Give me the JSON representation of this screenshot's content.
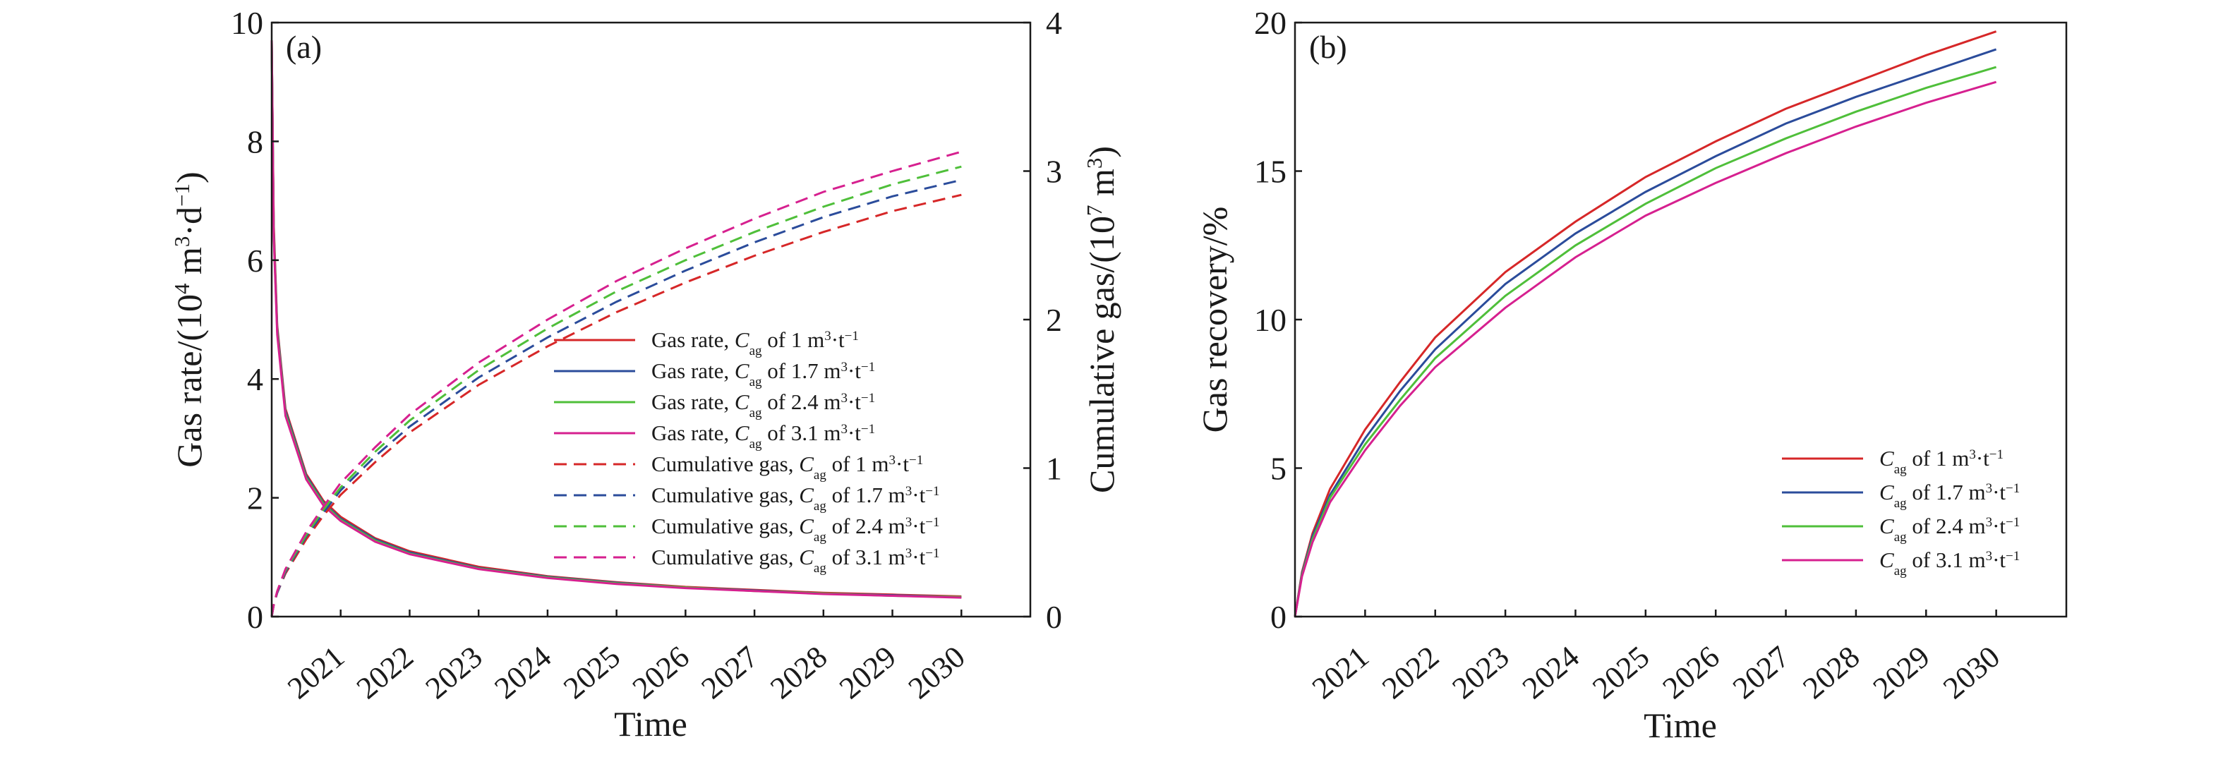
{
  "chart_data": [
    {
      "panel_label": "(a)",
      "type": "line",
      "xlabel": "Time",
      "ylabel_left": [
        "Gas rate/(10",
        "4",
        " m",
        "3",
        "·d",
        "−1",
        ")"
      ],
      "ylabel_right": [
        "Cumulative gas/(10",
        "7",
        " m",
        "3",
        ")"
      ],
      "x_ticks": [
        "2021",
        "2022",
        "2023",
        "2024",
        "2025",
        "2026",
        "2027",
        "2028",
        "2029",
        "2030"
      ],
      "xlim": [
        2020.0,
        2031.0
      ],
      "ylim_left": [
        0,
        10
      ],
      "y_ticks_left": [
        "0",
        "2",
        "4",
        "6",
        "8",
        "10"
      ],
      "ylim_right": [
        0,
        4
      ],
      "y_ticks_right": [
        "0",
        "1",
        "2",
        "3",
        "4"
      ],
      "x_values": [
        2020.0,
        2020.03,
        2020.08,
        2020.2,
        2020.5,
        2020.75,
        2021.0,
        2021.5,
        2022.0,
        2023.0,
        2024.0,
        2025.0,
        2026.0,
        2027.0,
        2028.0,
        2029.0,
        2030.0
      ],
      "series": [
        {
          "name_parts": [
            "Gas rate, ",
            "C",
            "ag",
            " of 1 m",
            "3",
            "·t",
            "−1"
          ],
          "axis": "left",
          "dash": "solid",
          "color": "#d62728",
          "values": [
            9.7,
            6.6,
            4.9,
            3.5,
            2.4,
            1.95,
            1.68,
            1.32,
            1.1,
            0.84,
            0.68,
            0.58,
            0.5,
            0.45,
            0.4,
            0.37,
            0.34
          ]
        },
        {
          "name_parts": [
            "Gas rate, ",
            "C",
            "ag",
            " of 1.7 m",
            "3",
            "·t",
            "−1"
          ],
          "axis": "left",
          "dash": "solid",
          "color": "#2b4c9b",
          "values": [
            9.7,
            6.5,
            4.85,
            3.46,
            2.37,
            1.92,
            1.65,
            1.3,
            1.08,
            0.82,
            0.67,
            0.57,
            0.49,
            0.44,
            0.39,
            0.36,
            0.33
          ]
        },
        {
          "name_parts": [
            "Gas rate, ",
            "C",
            "ag",
            " of 2.4 m",
            "3",
            "·t",
            "−1"
          ],
          "axis": "left",
          "dash": "solid",
          "color": "#4fbf3a",
          "values": [
            9.7,
            6.45,
            4.8,
            3.42,
            2.34,
            1.9,
            1.63,
            1.28,
            1.06,
            0.81,
            0.66,
            0.56,
            0.49,
            0.43,
            0.39,
            0.35,
            0.33
          ]
        },
        {
          "name_parts": [
            "Gas rate, ",
            "C",
            "ag",
            " of 3.1 m",
            "3",
            "·t",
            "−1"
          ],
          "axis": "left",
          "dash": "solid",
          "color": "#d6208f",
          "values": [
            9.7,
            6.4,
            4.75,
            3.38,
            2.31,
            1.87,
            1.61,
            1.26,
            1.05,
            0.8,
            0.65,
            0.55,
            0.48,
            0.43,
            0.38,
            0.35,
            0.32
          ]
        },
        {
          "name_parts": [
            "Cumulative gas, ",
            "C",
            "ag",
            " of 1 m",
            "3",
            "·t",
            "−1"
          ],
          "axis": "right",
          "dash": "dashed",
          "color": "#d62728",
          "values": [
            0,
            0.08,
            0.16,
            0.29,
            0.52,
            0.68,
            0.82,
            1.04,
            1.24,
            1.56,
            1.82,
            2.05,
            2.25,
            2.43,
            2.59,
            2.73,
            2.84
          ]
        },
        {
          "name_parts": [
            "Cumulative gas, ",
            "C",
            "ag",
            " of 1.7 m",
            "3",
            "·t",
            "−1"
          ],
          "axis": "right",
          "dash": "dashed",
          "color": "#2b4c9b",
          "values": [
            0,
            0.08,
            0.16,
            0.3,
            0.54,
            0.7,
            0.85,
            1.08,
            1.28,
            1.61,
            1.88,
            2.12,
            2.33,
            2.52,
            2.69,
            2.83,
            2.94
          ]
        },
        {
          "name_parts": [
            "Cumulative gas, ",
            "C",
            "ag",
            " of 2.4 m",
            "3",
            "·t",
            "−1"
          ],
          "axis": "right",
          "dash": "dashed",
          "color": "#4fbf3a",
          "values": [
            0,
            0.08,
            0.17,
            0.31,
            0.55,
            0.72,
            0.87,
            1.11,
            1.32,
            1.66,
            1.94,
            2.19,
            2.4,
            2.59,
            2.76,
            2.91,
            3.03
          ]
        },
        {
          "name_parts": [
            "Cumulative gas, ",
            "C",
            "ag",
            " of 3.1 m",
            "3",
            "·t",
            "−1"
          ],
          "axis": "right",
          "dash": "dashed",
          "color": "#d6208f",
          "values": [
            0,
            0.08,
            0.17,
            0.32,
            0.57,
            0.74,
            0.9,
            1.14,
            1.36,
            1.71,
            2.0,
            2.26,
            2.48,
            2.68,
            2.86,
            3.0,
            3.13
          ]
        }
      ],
      "legend_position": "center-right"
    },
    {
      "panel_label": "(b)",
      "type": "line",
      "xlabel": "Time",
      "ylabel": "Gas recovery/%",
      "x_ticks": [
        "2021",
        "2022",
        "2023",
        "2024",
        "2025",
        "2026",
        "2027",
        "2028",
        "2029",
        "2030"
      ],
      "xlim": [
        2020.0,
        2031.0
      ],
      "ylim": [
        0,
        20
      ],
      "y_ticks": [
        "0",
        "5",
        "10",
        "15",
        "20"
      ],
      "x_values": [
        2020.0,
        2020.1,
        2020.25,
        2020.5,
        2021.0,
        2021.5,
        2022.0,
        2023.0,
        2024.0,
        2025.0,
        2026.0,
        2027.0,
        2028.0,
        2029.0,
        2030.0
      ],
      "series": [
        {
          "name_parts": [
            "",
            "C",
            "ag",
            " of 1 m",
            "3",
            "·t",
            "−1"
          ],
          "color": "#d62728",
          "values": [
            0,
            1.5,
            2.8,
            4.3,
            6.3,
            7.9,
            9.4,
            11.6,
            13.3,
            14.8,
            16.0,
            17.1,
            18.0,
            18.9,
            19.7
          ]
        },
        {
          "name_parts": [
            "",
            "C",
            "ag",
            " of 1.7 m",
            "3",
            "·t",
            "−1"
          ],
          "color": "#2b4c9b",
          "values": [
            0,
            1.45,
            2.7,
            4.1,
            6.0,
            7.6,
            9.0,
            11.2,
            12.9,
            14.3,
            15.5,
            16.6,
            17.5,
            18.3,
            19.1
          ]
        },
        {
          "name_parts": [
            "",
            "C",
            "ag",
            " of 2.4 m",
            "3",
            "·t",
            "−1"
          ],
          "color": "#4fbf3a",
          "values": [
            0,
            1.4,
            2.6,
            4.0,
            5.8,
            7.3,
            8.7,
            10.8,
            12.5,
            13.9,
            15.1,
            16.1,
            17.0,
            17.8,
            18.5
          ]
        },
        {
          "name_parts": [
            "",
            "C",
            "ag",
            " of 3.1 m",
            "3",
            "·t",
            "−1"
          ],
          "color": "#d6208f",
          "values": [
            0,
            1.35,
            2.5,
            3.85,
            5.6,
            7.1,
            8.4,
            10.4,
            12.1,
            13.5,
            14.6,
            15.6,
            16.5,
            17.3,
            18.0
          ]
        }
      ],
      "legend_position": "lower-right"
    }
  ]
}
